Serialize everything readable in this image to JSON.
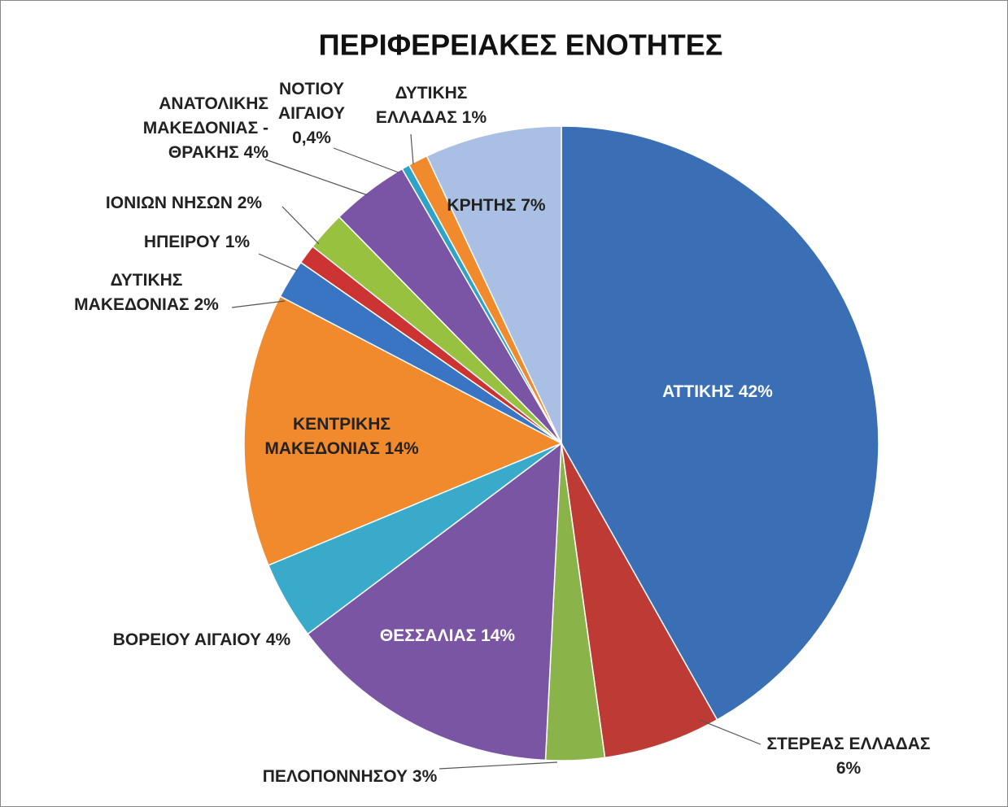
{
  "chart_data": {
    "type": "pie",
    "title": "ΠΕΡΙΦΕΡΕΙΑΚΕΣ ΕΝΟΤΗΤΕΣ",
    "categories": [
      "ΑΤΤΙΚΗΣ",
      "ΣΤΕΡΕΑΣ ΕΛΛΑΔΑΣ",
      "ΠΕΛΟΠΟΝΝΗΣΟΥ",
      "ΘΕΣΣΑΛΙΑΣ",
      "ΒΟΡΕΙΟΥ ΑΙΓΑΙΟΥ",
      "ΚΕΝΤΡΙΚΗΣ ΜΑΚΕΔΟΝΙΑΣ",
      "ΔΥΤΙΚΗΣ ΜΑΚΕΔΟΝΙΑΣ",
      "ΗΠΕΙΡΟΥ",
      "ΙΟΝΙΩΝ ΝΗΣΩΝ",
      "ΑΝΑΤΟΛΙΚΗΣ ΜΑΚΕΔΟΝΙΑΣ - ΘΡΑΚΗΣ",
      "ΝΟΤΙΟΥ ΑΙΓΑΙΟΥ",
      "ΔΥΤΙΚΗΣ ΕΛΛΑΔΑΣ",
      "ΚΡΗΤΗΣ"
    ],
    "values": [
      42,
      6,
      3,
      14,
      4,
      14,
      2,
      1,
      2,
      4,
      0.4,
      1,
      7
    ],
    "value_labels": [
      "42%",
      "6%",
      "3%",
      "14%",
      "4%",
      "14%",
      "2%",
      "1%",
      "2%",
      "4%",
      "0,4%",
      "1%",
      "7%"
    ],
    "colors": [
      "#3a6fb6",
      "#be3a34",
      "#8ab34a",
      "#7a55a3",
      "#3aaacb",
      "#f08a2c",
      "#3a75c4",
      "#cc3333",
      "#99c140",
      "#7b55a5",
      "#2fa3c6",
      "#f08a2c",
      "#a9bfe3"
    ]
  }
}
